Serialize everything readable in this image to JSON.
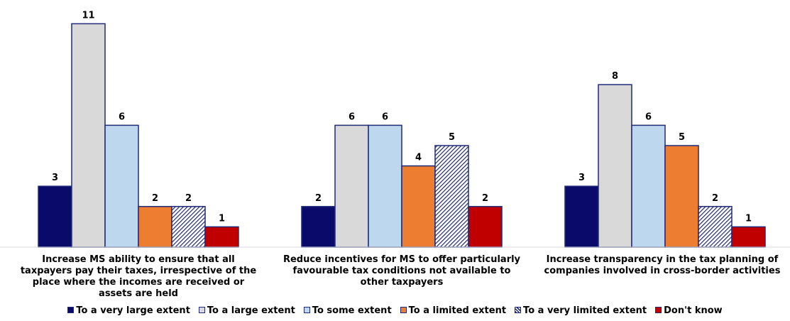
{
  "chart_data": {
    "type": "bar",
    "categories": [
      "Increase MS ability to ensure that all taxpayers pay their taxes, irrespective of the place where the incomes are received or assets are held",
      "Reduce incentives for MS to offer particularly favourable tax conditions not available to other taxpayers",
      "Increase transparency in the tax planning of companies involved in cross-border activities"
    ],
    "category_lines": [
      [
        "Increase MS ability to ensure that all",
        "taxpayers pay their taxes, irrespective of the",
        "place where the incomes are received or",
        "assets are held"
      ],
      [
        "Reduce incentives for MS to offer particularly",
        "favourable tax conditions not available to",
        "other taxpayers"
      ],
      [
        "Increase transparency in the tax planning of",
        "companies involved in cross-border activities"
      ]
    ],
    "series": [
      {
        "name": "To a very large extent",
        "values": [
          3,
          2,
          3
        ],
        "color": "#0a0a6b",
        "pattern": "solid"
      },
      {
        "name": "To a large extent",
        "values": [
          11,
          6,
          8
        ],
        "color": "#d9d9d9",
        "pattern": "solid"
      },
      {
        "name": "To some extent",
        "values": [
          6,
          6,
          6
        ],
        "color": "#bdd7ee",
        "pattern": "solid"
      },
      {
        "name": "To a limited extent",
        "values": [
          2,
          4,
          5
        ],
        "color": "#ed7d31",
        "pattern": "solid"
      },
      {
        "name": "To a very limited extent",
        "values": [
          2,
          5,
          2
        ],
        "color": "#1f2a6b",
        "pattern": "hatched"
      },
      {
        "name": "Don't know",
        "values": [
          1,
          2,
          1
        ],
        "color": "#c00000",
        "pattern": "solid"
      }
    ],
    "data_labels": true,
    "ylim": [
      0,
      11
    ],
    "grid": false,
    "legend_position": "bottom",
    "bar_outline_color": "#1f2a7a"
  }
}
